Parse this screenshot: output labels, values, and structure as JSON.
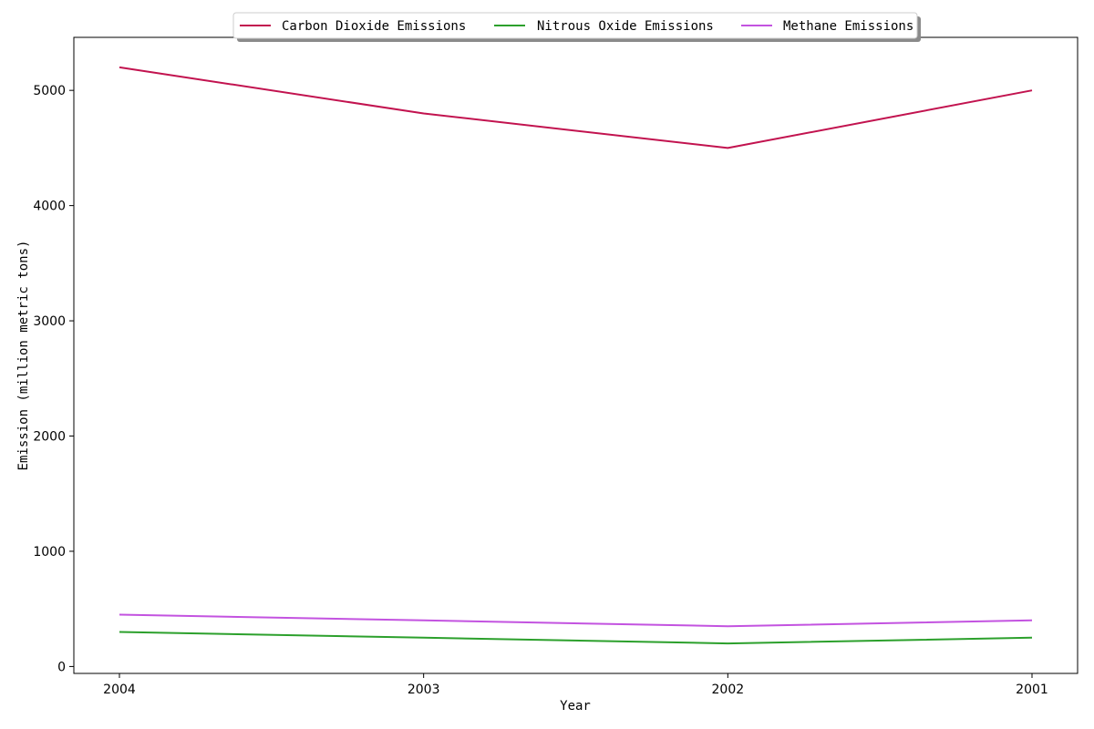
{
  "chart_data": {
    "type": "line",
    "x": [
      "2004",
      "2003",
      "2002",
      "2001"
    ],
    "series": [
      {
        "name": "Carbon Dioxide Emissions",
        "values": [
          5200,
          4800,
          4500,
          5000
        ],
        "color": "#c2134f"
      },
      {
        "name": "Nitrous Oxide Emissions",
        "values": [
          300,
          250,
          200,
          250
        ],
        "color": "#2ca02c"
      },
      {
        "name": "Methane Emissions",
        "values": [
          450,
          400,
          350,
          400
        ],
        "color": "#c353e0"
      }
    ],
    "xlabel": "Year",
    "ylabel": "Emission (million metric tons)",
    "ylim": [
      -60,
      5460
    ],
    "yticks": [
      0,
      1000,
      2000,
      3000,
      4000,
      5000
    ],
    "grid": false,
    "legend_position": "top-center"
  }
}
